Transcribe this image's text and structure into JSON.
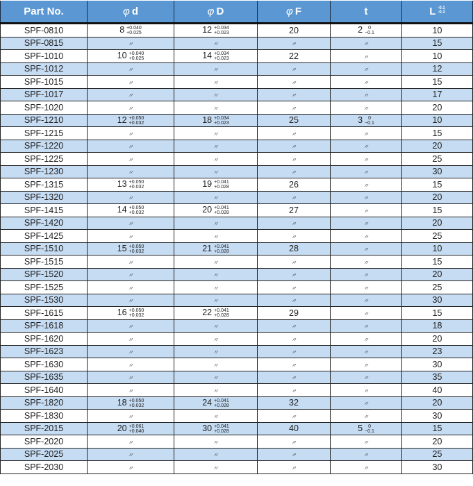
{
  "header": {
    "part_no": "Part No.",
    "phi": "φ",
    "d": "d",
    "D": "D",
    "F": "F",
    "t": "t",
    "L": "L",
    "L_upper": "-0.1",
    "L_lower": "-0.3"
  },
  "ditto": "〃",
  "colors": {
    "header_bg": "#5b97d2",
    "alt_row": "#c6dcf3"
  },
  "rows": [
    [
      "SPF-0810",
      {
        "v": "8",
        "up": "+0.040",
        "lo": "+0.025"
      },
      {
        "v": "12",
        "up": "+0.034",
        "lo": "+0.023"
      },
      "20",
      {
        "v": "2",
        "up": "0",
        "lo": "−0.1"
      },
      "10"
    ],
    [
      "SPF-0815",
      null,
      null,
      null,
      null,
      "15"
    ],
    [
      "SPF-1010",
      {
        "v": "10",
        "up": "+0.040",
        "lo": "+0.025"
      },
      {
        "v": "14",
        "up": "+0.034",
        "lo": "+0.023"
      },
      "22",
      null,
      "10"
    ],
    [
      "SPF-1012",
      null,
      null,
      null,
      null,
      "12"
    ],
    [
      "SPF-1015",
      null,
      null,
      null,
      null,
      "15"
    ],
    [
      "SPF-1017",
      null,
      null,
      null,
      null,
      "17"
    ],
    [
      "SPF-1020",
      null,
      null,
      null,
      null,
      "20"
    ],
    [
      "SPF-1210",
      {
        "v": "12",
        "up": "+0.050",
        "lo": "+0.032"
      },
      {
        "v": "18",
        "up": "+0.034",
        "lo": "+0.023"
      },
      "25",
      {
        "v": "3",
        "up": "0",
        "lo": "−0.1"
      },
      "10"
    ],
    [
      "SPF-1215",
      null,
      null,
      null,
      null,
      "15"
    ],
    [
      "SPF-1220",
      null,
      null,
      null,
      null,
      "20"
    ],
    [
      "SPF-1225",
      null,
      null,
      null,
      null,
      "25"
    ],
    [
      "SPF-1230",
      null,
      null,
      null,
      null,
      "30"
    ],
    [
      "SPF-1315",
      {
        "v": "13",
        "up": "+0.050",
        "lo": "+0.032"
      },
      {
        "v": "19",
        "up": "+0.041",
        "lo": "+0.028"
      },
      "26",
      null,
      "15"
    ],
    [
      "SPF-1320",
      null,
      null,
      null,
      null,
      "20"
    ],
    [
      "SPF-1415",
      {
        "v": "14",
        "up": "+0.050",
        "lo": "+0.032"
      },
      {
        "v": "20",
        "up": "+0.041",
        "lo": "+0.028"
      },
      "27",
      null,
      "15"
    ],
    [
      "SPF-1420",
      null,
      null,
      null,
      null,
      "20"
    ],
    [
      "SPF-1425",
      null,
      null,
      null,
      null,
      "25"
    ],
    [
      "SPF-1510",
      {
        "v": "15",
        "up": "+0.050",
        "lo": "+0.032"
      },
      {
        "v": "21",
        "up": "+0.041",
        "lo": "+0.028"
      },
      "28",
      null,
      "10"
    ],
    [
      "SPF-1515",
      null,
      null,
      null,
      null,
      "15"
    ],
    [
      "SPF-1520",
      null,
      null,
      null,
      null,
      "20"
    ],
    [
      "SPF-1525",
      null,
      null,
      null,
      null,
      "25"
    ],
    [
      "SPF-1530",
      null,
      null,
      null,
      null,
      "30"
    ],
    [
      "SPF-1615",
      {
        "v": "16",
        "up": "+0.050",
        "lo": "+0.032"
      },
      {
        "v": "22",
        "up": "+0.041",
        "lo": "+0.028"
      },
      "29",
      null,
      "15"
    ],
    [
      "SPF-1618",
      null,
      null,
      null,
      null,
      "18"
    ],
    [
      "SPF-1620",
      null,
      null,
      null,
      null,
      "20"
    ],
    [
      "SPF-1623",
      null,
      null,
      null,
      null,
      "23"
    ],
    [
      "SPF-1630",
      null,
      null,
      null,
      null,
      "30"
    ],
    [
      "SPF-1635",
      null,
      null,
      null,
      null,
      "35"
    ],
    [
      "SPF-1640",
      null,
      null,
      null,
      null,
      "40"
    ],
    [
      "SPF-1820",
      {
        "v": "18",
        "up": "+0.050",
        "lo": "+0.032"
      },
      {
        "v": "24",
        "up": "+0.041",
        "lo": "+0.028"
      },
      "32",
      null,
      "20"
    ],
    [
      "SPF-1830",
      null,
      null,
      null,
      null,
      "30"
    ],
    [
      "SPF-2015",
      {
        "v": "20",
        "up": "+0.061",
        "lo": "+0.040"
      },
      {
        "v": "30",
        "up": "+0.041",
        "lo": "+0.028"
      },
      "40",
      {
        "v": "5",
        "up": "0",
        "lo": "−0.1"
      },
      "15"
    ],
    [
      "SPF-2020",
      null,
      null,
      null,
      null,
      "20"
    ],
    [
      "SPF-2025",
      null,
      null,
      null,
      null,
      "25"
    ],
    [
      "SPF-2030",
      null,
      null,
      null,
      null,
      "30"
    ]
  ]
}
